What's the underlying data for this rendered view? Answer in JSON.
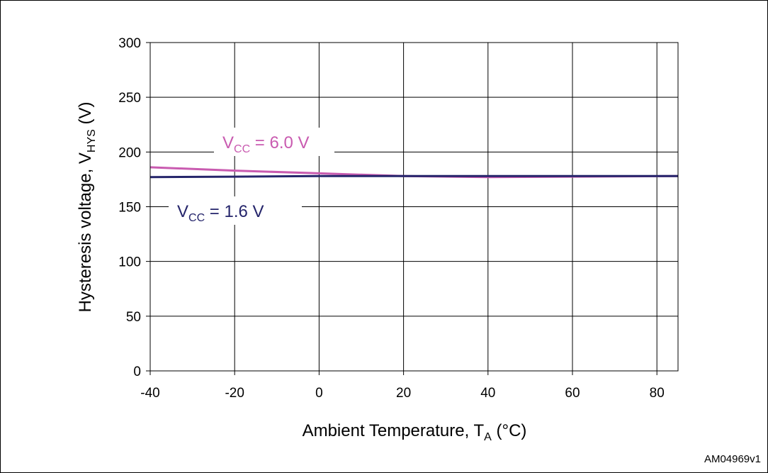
{
  "chart_data": {
    "type": "line",
    "title": "",
    "xlabel": {
      "text": "Ambient Temperature, T",
      "sub": "A",
      "suffix": " (°C)"
    },
    "ylabel": {
      "text": "Hysteresis voltage, V",
      "sub": "HYS",
      "suffix": " (V)"
    },
    "xlim": [
      -40,
      85
    ],
    "ylim": [
      0,
      300
    ],
    "x_ticks": [
      -40,
      -20,
      0,
      20,
      40,
      60,
      80
    ],
    "y_ticks": [
      0,
      50,
      100,
      150,
      200,
      250,
      300
    ],
    "x_tick_labels": [
      "-40",
      "-20",
      "0",
      "20",
      "40",
      "60",
      "80"
    ],
    "y_tick_labels": [
      "0",
      "50",
      "100",
      "150",
      "200",
      "250",
      "300"
    ],
    "grid": true,
    "series": [
      {
        "name": "VCC = 6.0 V",
        "label": {
          "main": "V",
          "sub": "CC",
          "rest": " = 6.0 V"
        },
        "color": "#c95bb0",
        "x": [
          -40,
          -20,
          0,
          20,
          40,
          60,
          85
        ],
        "y": [
          186,
          183,
          180.5,
          178,
          177,
          177.5,
          178
        ]
      },
      {
        "name": "VCC = 1.6 V",
        "label": {
          "main": "V",
          "sub": "CC",
          "rest": " = 1.6 V"
        },
        "color": "#25256b",
        "x": [
          -40,
          -20,
          0,
          20,
          40,
          60,
          85
        ],
        "y": [
          177,
          177.5,
          178,
          178,
          178,
          178,
          178
        ]
      }
    ]
  },
  "figure_id": "AM04969v1"
}
